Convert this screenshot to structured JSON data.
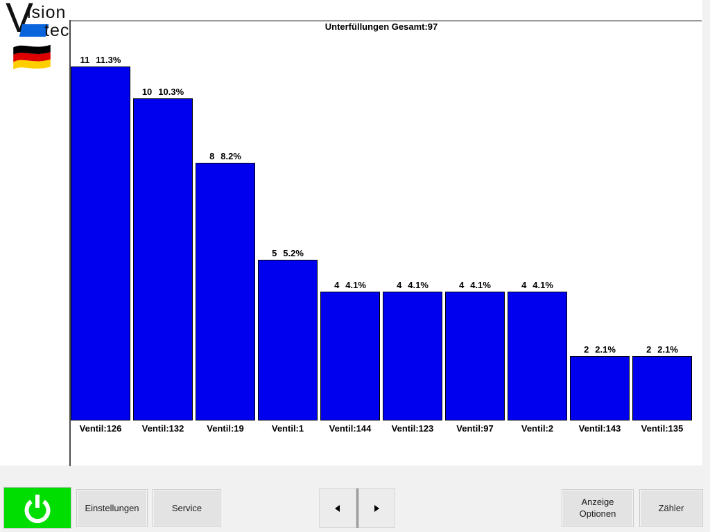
{
  "window": {
    "background": "#f1f1f1",
    "panel_background": "#ffffff"
  },
  "logo": {
    "v": "V",
    "ision": "ision",
    "tec": "tec",
    "accent_color": "#0a64dc",
    "flag_icon": "german-flag-icon",
    "flag_colors": [
      "#000000",
      "#dd0000",
      "#ffce00"
    ]
  },
  "chart_data": {
    "type": "bar",
    "title": "Unterfüllungen Gesamt:97",
    "total_shown_in_title": 97,
    "categories": [
      "Ventil:126",
      "Ventil:132",
      "Ventil:19",
      "Ventil:1",
      "Ventil:144",
      "Ventil:123",
      "Ventil:97",
      "Ventil:2",
      "Ventil:143",
      "Ventil:135"
    ],
    "values": [
      11,
      10,
      8,
      5,
      4,
      4,
      4,
      4,
      2,
      2
    ],
    "percent_labels": [
      "11.3%",
      "10.3%",
      "8.2%",
      "5.2%",
      "4.1%",
      "4.1%",
      "4.1%",
      "4.1%",
      "2.1%",
      "2.1%"
    ],
    "bar_color": "#0000ee",
    "bar_border_color": "#000000",
    "ylim": [
      0,
      11
    ],
    "grid": false,
    "legend": null,
    "xlabel": "",
    "ylabel": ""
  },
  "toolbar": {
    "power_icon": "power-icon",
    "power_color": "#00dd00",
    "einstellungen_label": "Einstellungen",
    "service_label": "Service",
    "pager_left_icon": "arrow-left-icon",
    "pager_right_icon": "arrow-right-icon",
    "anzeige_line1": "Anzeige",
    "anzeige_line2": "Optionen",
    "zaehler_label": "Zähler"
  }
}
